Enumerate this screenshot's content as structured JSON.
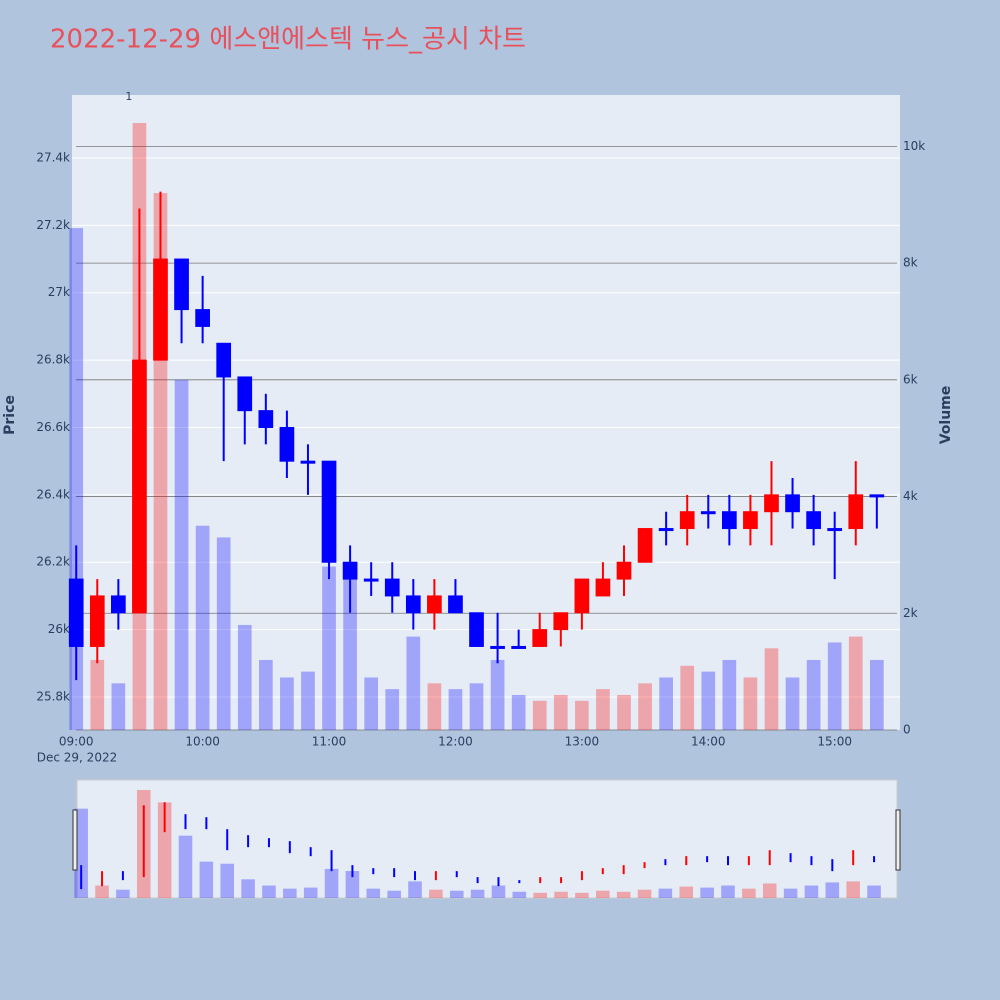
{
  "chart_data": {
    "type": "candlestick",
    "title": "2022-12-29 에스앤에스텍 뉴스_공시 차트",
    "x": [
      "09:00",
      "09:10",
      "09:20",
      "09:30",
      "09:40",
      "09:50",
      "10:00",
      "10:10",
      "10:20",
      "10:30",
      "10:40",
      "10:50",
      "11:00",
      "11:10",
      "11:20",
      "11:30",
      "11:40",
      "11:50",
      "12:00",
      "12:10",
      "12:20",
      "12:30",
      "12:40",
      "12:50",
      "13:00",
      "13:10",
      "13:20",
      "13:30",
      "13:40",
      "13:50",
      "14:00",
      "14:10",
      "14:20",
      "14:30",
      "14:40",
      "14:50",
      "15:00",
      "15:10",
      "15:20"
    ],
    "open": [
      26150,
      25950,
      26100,
      26050,
      26800,
      27100,
      26950,
      26850,
      26750,
      26650,
      26600,
      26500,
      26500,
      26200,
      26150,
      26150,
      26100,
      26050,
      26100,
      26050,
      25950,
      25950,
      25950,
      26000,
      26050,
      26100,
      26150,
      26200,
      26300,
      26300,
      26350,
      26350,
      26300,
      26350,
      26400,
      26350,
      26300,
      26300,
      26400
    ],
    "high": [
      26250,
      26150,
      26150,
      27250,
      27300,
      27100,
      27050,
      26850,
      26750,
      26700,
      26650,
      26550,
      26500,
      26250,
      26200,
      26200,
      26150,
      26150,
      26150,
      26050,
      26050,
      26000,
      26050,
      26050,
      26150,
      26200,
      26250,
      26300,
      26350,
      26400,
      26400,
      26400,
      26400,
      26500,
      26450,
      26400,
      26350,
      26500,
      26400
    ],
    "low": [
      25850,
      25900,
      26000,
      26050,
      26800,
      26850,
      26850,
      26500,
      26550,
      26550,
      26450,
      26400,
      26150,
      26050,
      26100,
      26050,
      26000,
      26000,
      26050,
      25950,
      25900,
      25950,
      25950,
      25950,
      26000,
      26100,
      26100,
      26200,
      26250,
      26250,
      26300,
      26250,
      26250,
      26250,
      26300,
      26250,
      26150,
      26250,
      26300
    ],
    "close": [
      25950,
      26100,
      26050,
      26800,
      27100,
      26950,
      26900,
      26750,
      26650,
      26600,
      26500,
      26500,
      26200,
      26150,
      26150,
      26100,
      26050,
      26100,
      26050,
      25950,
      25950,
      25950,
      26000,
      26050,
      26150,
      26150,
      26200,
      26300,
      26300,
      26350,
      26350,
      26300,
      26350,
      26400,
      26350,
      26300,
      26300,
      26400,
      26400
    ],
    "volume": [
      8600,
      1200,
      800,
      10400,
      9200,
      6000,
      3500,
      3300,
      1800,
      1200,
      900,
      1000,
      2800,
      2600,
      900,
      700,
      1600,
      800,
      700,
      800,
      1200,
      600,
      500,
      600,
      500,
      700,
      600,
      800,
      900,
      1100,
      1000,
      1200,
      900,
      1400,
      900,
      1200,
      1500,
      1600,
      1200
    ],
    "xlim": [
      "08:58",
      "15:31"
    ],
    "xticks": [
      "09:00",
      "10:00",
      "11:00",
      "12:00",
      "13:00",
      "14:00",
      "15:00"
    ],
    "x_date_label": "Dec 29, 2022",
    "ylim": [
      25702,
      27587
    ],
    "yticks": [
      {
        "value": 25800,
        "label": "25.8k"
      },
      {
        "value": 26000,
        "label": "26k"
      },
      {
        "value": 26200,
        "label": "26.2k"
      },
      {
        "value": 26400,
        "label": "26.4k"
      },
      {
        "value": 26600,
        "label": "26.6k"
      },
      {
        "value": 26800,
        "label": "26.8k"
      },
      {
        "value": 27000,
        "label": "27k"
      },
      {
        "value": 27200,
        "label": "27.2k"
      },
      {
        "value": 27400,
        "label": "27.4k"
      }
    ],
    "y2lim": [
      0,
      10880
    ],
    "y2ticks": [
      0,
      {
        "value": 2000,
        "label": "2k"
      },
      {
        "value": 4000,
        "label": "4k"
      },
      {
        "value": 6000,
        "label": "6k"
      },
      {
        "value": 8000,
        "label": "8k"
      },
      {
        "value": 10000,
        "label": "10k"
      }
    ],
    "ylabel": "Price",
    "y2label": "Volume",
    "increasing_color": "#ff0000",
    "decreasing_color": "#0000ff",
    "annotations": [
      {
        "x": "09:25",
        "text": "1"
      }
    ],
    "rangeslider": true
  }
}
